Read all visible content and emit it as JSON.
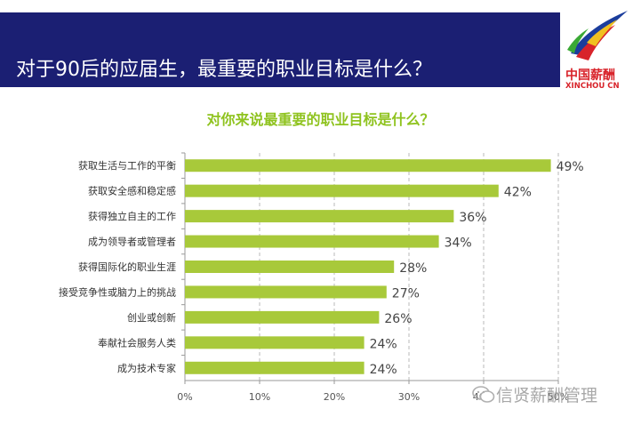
{
  "header": {
    "title": "对于90后的应届生，最重要的职业目标是什么？"
  },
  "logo": {
    "text_cn": "中国薪酬",
    "text_en": "XINCHOU CN",
    "icon": "swoosh-logo-icon"
  },
  "watermark": {
    "text": "信贤薪酬管理",
    "icon": "wechat-icon"
  },
  "colors": {
    "header_bg": "#1b1f73",
    "bar": "#a8c93a",
    "title_green": "#8fc31f",
    "logo_red": "#d8232a"
  },
  "chart_data": {
    "type": "bar",
    "orientation": "horizontal",
    "title": "对你来说最重要的职业目标是什么？",
    "categories": [
      "获取生活与工作的平衡",
      "获取安全感和稳定感",
      "获得独立自主的工作",
      "成为领导者或管理者",
      "获得国际化的职业生涯",
      "接受竞争性或脑力上的挑战",
      "创业或创新",
      "奉献社会服务人类",
      "成为技术专家"
    ],
    "values": [
      49,
      42,
      36,
      34,
      28,
      27,
      26,
      24,
      24
    ],
    "value_labels": [
      "49%",
      "42%",
      "36%",
      "34%",
      "28%",
      "27%",
      "26%",
      "24%",
      "24%"
    ],
    "x_ticks": [
      0,
      10,
      20,
      30,
      40,
      50
    ],
    "x_tick_labels": [
      "0%",
      "10%",
      "20%",
      "30%",
      "40%",
      "50%"
    ],
    "xlim": [
      0,
      50
    ],
    "xlabel": "",
    "ylabel": "",
    "grid": "vertical dashed"
  }
}
